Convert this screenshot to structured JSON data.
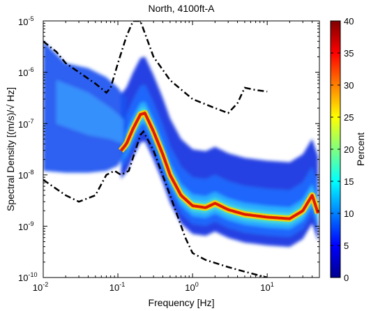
{
  "chart_data": {
    "type": "heatmap",
    "title": "North, 4100ft-A",
    "xlabel": "Frequency [Hz]",
    "ylabel": "Spectral Density [(m/s)/√ Hz]",
    "xscale": "log",
    "yscale": "log",
    "xlim": [
      0.01,
      50
    ],
    "ylim": [
      1e-10,
      1e-05
    ],
    "x_ticks": [
      {
        "value": 0.01,
        "base": "10",
        "exp": "-2"
      },
      {
        "value": 0.1,
        "base": "10",
        "exp": "-1"
      },
      {
        "value": 1,
        "base": "10",
        "exp": "0"
      },
      {
        "value": 10,
        "base": "10",
        "exp": "1"
      }
    ],
    "y_ticks": [
      {
        "value": 1e-10,
        "base": "10",
        "exp": "-10"
      },
      {
        "value": 1e-09,
        "base": "10",
        "exp": "-9"
      },
      {
        "value": 1e-08,
        "base": "10",
        "exp": "-8"
      },
      {
        "value": 1e-07,
        "base": "10",
        "exp": "-7"
      },
      {
        "value": 1e-06,
        "base": "10",
        "exp": "-6"
      },
      {
        "value": 1e-05,
        "base": "10",
        "exp": "-5"
      }
    ],
    "colorbar": {
      "label": "Percent",
      "min": 0,
      "max": 40,
      "ticks": [
        "0",
        "5",
        "10",
        "15",
        "20",
        "25",
        "30",
        "35",
        "40"
      ],
      "colormap": "jet"
    },
    "mode_curve": {
      "x": [
        0.1,
        0.13,
        0.16,
        0.2,
        0.23,
        0.3,
        0.4,
        0.5,
        0.7,
        1,
        1.5,
        2,
        3,
        5,
        10,
        20,
        30,
        40,
        50
      ],
      "y": [
        2.5e-08,
        4e-08,
        8e-08,
        1.5e-07,
        1.6e-07,
        7e-08,
        2.5e-08,
        1e-08,
        4e-09,
        2.5e-09,
        2.3e-09,
        2.8e-09,
        2.1e-09,
        1.7e-09,
        1.5e-09,
        1.4e-09,
        2e-09,
        4e-09,
        1.5e-09
      ]
    },
    "noise_models": [
      {
        "x": [
          0.01,
          0.015,
          0.02,
          0.03,
          0.05,
          0.07,
          0.08,
          0.1,
          0.13,
          0.16,
          0.2,
          0.3,
          0.5,
          1,
          2,
          3,
          4,
          5,
          7,
          10
        ],
        "y": [
          4e-06,
          2.5e-06,
          1.5e-06,
          1e-06,
          6e-07,
          4e-07,
          5e-07,
          1.5e-06,
          5e-06,
          1e-05,
          1e-05,
          2e-06,
          7e-07,
          3e-07,
          2e-07,
          1.6e-07,
          2.5e-07,
          5e-07,
          4.5e-07,
          4.2e-07
        ]
      },
      {
        "x": [
          0.01,
          0.02,
          0.03,
          0.05,
          0.07,
          0.09,
          0.11,
          0.14,
          0.2,
          0.22,
          0.3,
          0.5,
          0.8,
          1,
          1.5,
          3,
          5,
          10
        ],
        "y": [
          8e-09,
          4e-09,
          3e-09,
          4e-09,
          1e-08,
          1.2e-08,
          1e-08,
          1.2e-08,
          6e-08,
          7e-08,
          3e-08,
          4e-09,
          6e-10,
          3e-10,
          2.2e-10,
          1.6e-10,
          1.3e-10,
          1e-10
        ]
      }
    ]
  }
}
